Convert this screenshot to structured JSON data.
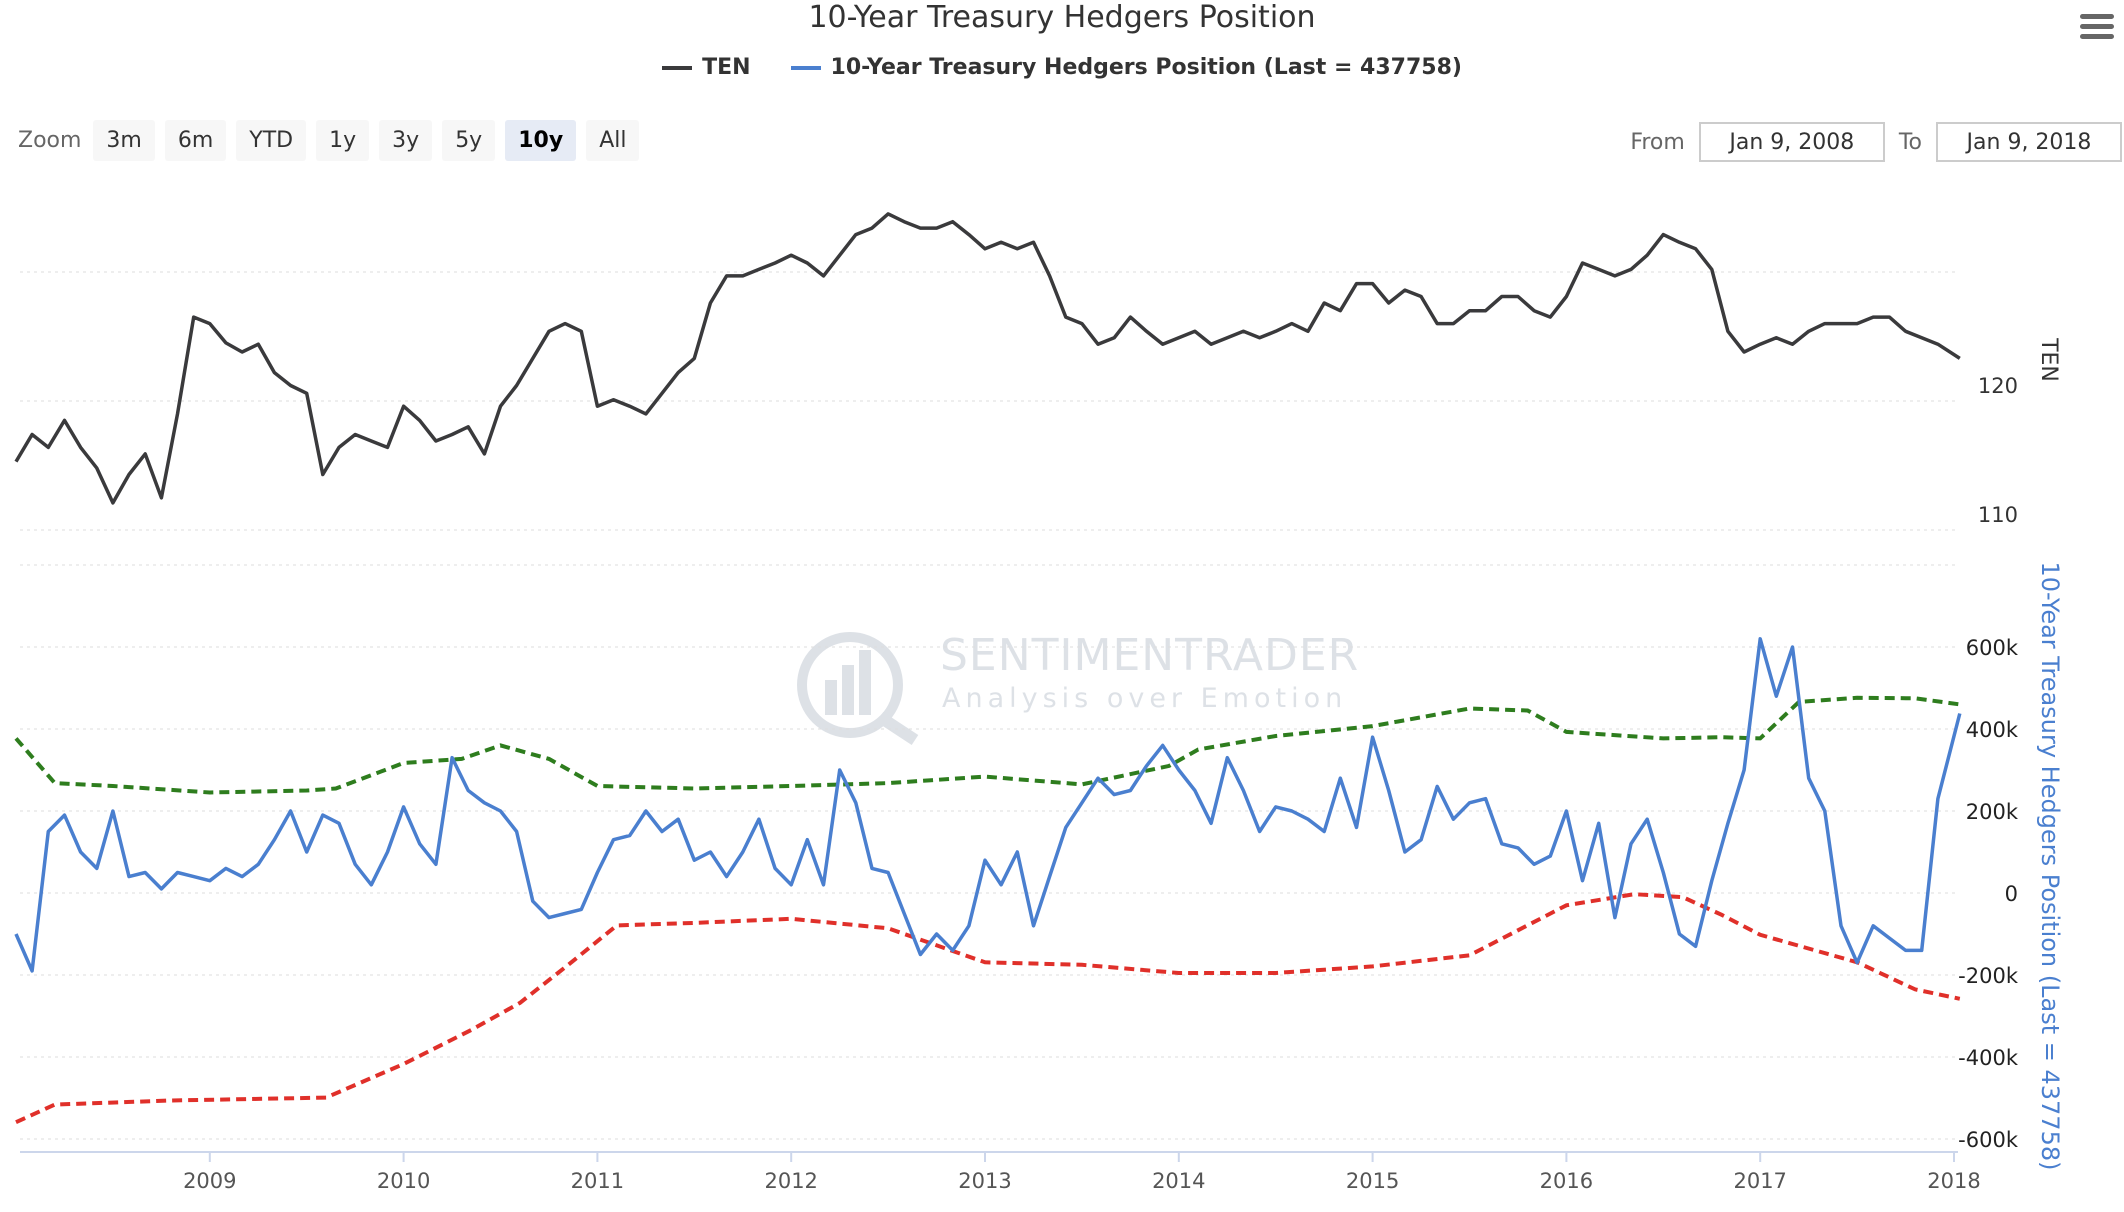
{
  "toolbar": {
    "zoom_label": "Zoom",
    "zoom_buttons": [
      "3m",
      "6m",
      "YTD",
      "1y",
      "3y",
      "5y",
      "10y",
      "All"
    ],
    "active_zoom": "10y",
    "from_label": "From",
    "from_value": "Jan 9, 2008",
    "to_label": "To",
    "to_value": "Jan 9, 2018"
  },
  "watermark": {
    "brand": "SENTIMENTRADER",
    "tagline": "Analysis over Emotion"
  },
  "colors": {
    "ten": "#3a3a3c",
    "hedgers": "#4a7fcf",
    "upper_band": "#2e7d1e",
    "lower_band": "#e0302a"
  },
  "chart_data": {
    "type": "line",
    "title": "10-Year Treasury Hedgers Position",
    "legend": [
      "TEN",
      "10-Year Treasury Hedgers Position (Last = 437758)"
    ],
    "legend_placement": "top-center",
    "x_ticks": [
      "2009",
      "2010",
      "2011",
      "2012",
      "2013",
      "2014",
      "2015",
      "2016",
      "2017",
      "2018"
    ],
    "xlim": [
      2008.0,
      2018.03
    ],
    "panes": [
      {
        "name": "TEN",
        "ylabel": "TEN",
        "y_ticks": [
          "110",
          "120"
        ],
        "y_tick_values": [
          110,
          120
        ],
        "ylim": [
          108,
          137
        ],
        "series": [
          {
            "name": "TEN",
            "x_start": 2008.0,
            "interval_months": 1,
            "values": [
              115.3,
              117.4,
              116.4,
              118.5,
              116.4,
              114.8,
              112.1,
              114.3,
              115.9,
              112.5,
              119.0,
              126.5,
              126.0,
              124.5,
              123.8,
              124.4,
              122.2,
              121.2,
              120.6,
              114.3,
              116.4,
              117.4,
              116.9,
              116.4,
              119.6,
              118.5,
              116.9,
              117.4,
              118.0,
              115.9,
              119.6,
              121.2,
              123.3,
              125.4,
              126.0,
              125.4,
              119.6,
              120.1,
              119.6,
              119.0,
              120.6,
              122.2,
              123.3,
              127.6,
              129.7,
              129.7,
              130.2,
              130.7,
              131.3,
              130.7,
              129.7,
              131.3,
              132.9,
              133.4,
              134.5,
              133.9,
              133.4,
              133.4,
              133.9,
              132.9,
              131.8,
              132.3,
              131.8,
              132.3,
              129.7,
              126.5,
              126.0,
              124.4,
              124.9,
              126.5,
              125.4,
              124.4,
              124.9,
              125.4,
              124.4,
              124.9,
              125.4,
              124.9,
              125.4,
              126.0,
              125.4,
              127.6,
              127.0,
              129.1,
              129.1,
              127.6,
              128.6,
              128.1,
              126.0,
              126.0,
              127.0,
              127.0,
              128.1,
              128.1,
              127.0,
              126.5,
              128.1,
              130.7,
              130.2,
              129.7,
              130.2,
              131.3,
              132.9,
              132.3,
              131.8,
              130.2,
              125.4,
              123.8,
              124.4,
              124.9,
              124.4,
              125.4,
              126.0,
              126.0,
              126.0,
              126.5,
              126.5,
              125.4,
              124.9,
              124.4,
              123.3
            ]
          }
        ]
      },
      {
        "name": "Hedgers",
        "ylabel": "10-Year Treasury Hedgers Position (Last = 437758)",
        "y_ticks": [
          "-600k",
          "-400k",
          "-200k",
          "0",
          "200k",
          "400k",
          "600k"
        ],
        "y_tick_values": [
          -600000,
          -400000,
          -200000,
          0,
          200000,
          400000,
          600000
        ],
        "ylim": [
          -600000,
          800000
        ],
        "series": [
          {
            "name": "10-Year Treasury Hedgers Position",
            "x_start": 2008.0,
            "interval_months": 1,
            "values": [
              -100000,
              -190000,
              150000,
              190000,
              100000,
              60000,
              200000,
              40000,
              50000,
              10000,
              50000,
              40000,
              30000,
              60000,
              40000,
              70000,
              130000,
              200000,
              100000,
              190000,
              170000,
              70000,
              20000,
              100000,
              210000,
              120000,
              70000,
              330000,
              250000,
              220000,
              200000,
              150000,
              -20000,
              -60000,
              -50000,
              -40000,
              50000,
              130000,
              140000,
              200000,
              150000,
              180000,
              80000,
              100000,
              40000,
              100000,
              180000,
              60000,
              20000,
              130000,
              20000,
              300000,
              220000,
              60000,
              50000,
              -50000,
              -150000,
              -100000,
              -140000,
              -80000,
              80000,
              20000,
              100000,
              -80000,
              40000,
              160000,
              220000,
              280000,
              240000,
              250000,
              310000,
              360000,
              300000,
              250000,
              170000,
              330000,
              250000,
              150000,
              210000,
              200000,
              180000,
              150000,
              280000,
              160000,
              380000,
              250000,
              100000,
              130000,
              260000,
              180000,
              220000,
              230000,
              120000,
              110000,
              70000,
              90000,
              200000,
              30000,
              170000,
              -60000,
              120000,
              180000,
              50000,
              -100000,
              -130000,
              30000,
              170000,
              300000,
              620000,
              480000,
              600000,
              280000,
              200000,
              -80000,
              -170000,
              -80000,
              -110000,
              -140000,
              -140000,
              230000,
              437758
            ]
          },
          {
            "name": "Upper band",
            "style": "dashed",
            "points": [
              [
                2008.0,
                377000
              ],
              [
                2008.2,
                268000
              ],
              [
                2008.5,
                261000
              ],
              [
                2009.0,
                245000
              ],
              [
                2009.5,
                250000
              ],
              [
                2009.65,
                255000
              ],
              [
                2010.0,
                317000
              ],
              [
                2010.3,
                327000
              ],
              [
                2010.5,
                360000
              ],
              [
                2010.75,
                327000
              ],
              [
                2011.0,
                261000
              ],
              [
                2011.5,
                255000
              ],
              [
                2012.0,
                261000
              ],
              [
                2012.5,
                268000
              ],
              [
                2013.0,
                284000
              ],
              [
                2013.5,
                265000
              ],
              [
                2013.95,
                310000
              ],
              [
                2014.1,
                350000
              ],
              [
                2014.5,
                383000
              ],
              [
                2015.0,
                407000
              ],
              [
                2015.5,
                450000
              ],
              [
                2015.8,
                445000
              ],
              [
                2016.0,
                393000
              ],
              [
                2016.5,
                377000
              ],
              [
                2016.8,
                380000
              ],
              [
                2017.0,
                377000
              ],
              [
                2017.2,
                466000
              ],
              [
                2017.5,
                476000
              ],
              [
                2017.8,
                475000
              ],
              [
                2018.03,
                460000
              ]
            ]
          },
          {
            "name": "Lower band",
            "style": "dashed",
            "points": [
              [
                2008.0,
                -559000
              ],
              [
                2008.2,
                -516000
              ],
              [
                2008.8,
                -506000
              ],
              [
                2009.6,
                -499000
              ],
              [
                2010.0,
                -417000
              ],
              [
                2010.35,
                -334000
              ],
              [
                2010.6,
                -268000
              ],
              [
                2010.85,
                -175000
              ],
              [
                2011.1,
                -79000
              ],
              [
                2011.5,
                -73000
              ],
              [
                2012.0,
                -63000
              ],
              [
                2012.5,
                -86000
              ],
              [
                2013.0,
                -169000
              ],
              [
                2013.5,
                -175000
              ],
              [
                2014.0,
                -195000
              ],
              [
                2014.5,
                -195000
              ],
              [
                2015.0,
                -179000
              ],
              [
                2015.5,
                -152000
              ],
              [
                2016.0,
                -30000
              ],
              [
                2016.35,
                -3000
              ],
              [
                2016.6,
                -10000
              ],
              [
                2016.8,
                -53000
              ],
              [
                2017.0,
                -102000
              ],
              [
                2017.5,
                -169000
              ],
              [
                2017.8,
                -235000
              ],
              [
                2018.03,
                -258000
              ]
            ]
          }
        ]
      }
    ]
  }
}
